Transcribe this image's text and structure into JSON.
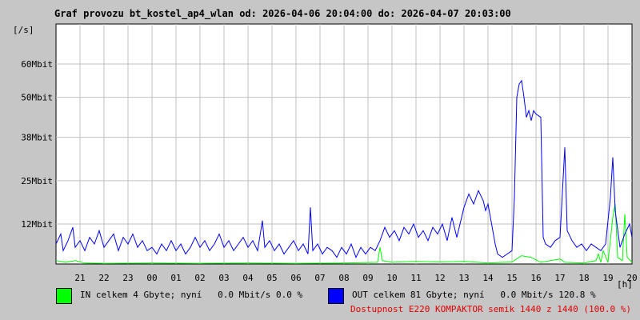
{
  "title": "Graf provozu bt_kostel_ap4_wlan od: 2026-04-06 20:04:00 do: 2026-04-07 20:03:00",
  "unit_label": "[/s]",
  "legend": {
    "in_text": "IN celkem 4 Gbyte; nyní   0.0 Mbit/s 0.0 %",
    "in_color": "#00ff00",
    "out_text": "OUT celkem 81 Gbyte; nyní   0.0 Mbit/s 120.8 %",
    "out_color": "#0000ff"
  },
  "availability": "Dostupnost E220 KOMPAKTOR semik 1440 z 1440 (100.0 %)",
  "chart_data": {
    "type": "line",
    "title": "Graf provozu bt_kostel_ap4_wlan od: 2026-04-06 20:04:00 do: 2026-04-07 20:03:00",
    "xlabel": "[h]",
    "ylabel": "[/s]",
    "xlim": [
      20,
      44
    ],
    "ylim": [
      0,
      72
    ],
    "y_ticks": [
      {
        "value": 12,
        "label": "12Mbit"
      },
      {
        "value": 25,
        "label": "25Mbit"
      },
      {
        "value": 38,
        "label": "38Mbit"
      },
      {
        "value": 50,
        "label": "50Mbit"
      },
      {
        "value": 60,
        "label": "60Mbit"
      }
    ],
    "x_tick_labels": [
      "21",
      "22",
      "23",
      "00",
      "01",
      "02",
      "03",
      "04",
      "05",
      "06",
      "07",
      "08",
      "09",
      "10",
      "11",
      "12",
      "13",
      "14",
      "15",
      "16",
      "17",
      "18",
      "19",
      "20"
    ],
    "grid": true,
    "series": [
      {
        "name": "OUT",
        "color": "#0000ff",
        "points": [
          [
            20.0,
            6
          ],
          [
            20.2,
            9
          ],
          [
            20.3,
            4
          ],
          [
            20.5,
            7
          ],
          [
            20.7,
            11
          ],
          [
            20.8,
            5
          ],
          [
            21.0,
            7
          ],
          [
            21.2,
            4
          ],
          [
            21.4,
            8
          ],
          [
            21.6,
            6
          ],
          [
            21.8,
            10
          ],
          [
            22.0,
            5
          ],
          [
            22.2,
            7
          ],
          [
            22.4,
            9
          ],
          [
            22.6,
            4
          ],
          [
            22.8,
            8
          ],
          [
            23.0,
            6
          ],
          [
            23.2,
            9
          ],
          [
            23.4,
            5
          ],
          [
            23.6,
            7
          ],
          [
            23.8,
            4
          ],
          [
            24.0,
            5
          ],
          [
            24.2,
            3
          ],
          [
            24.4,
            6
          ],
          [
            24.6,
            4
          ],
          [
            24.8,
            7
          ],
          [
            25.0,
            4
          ],
          [
            25.2,
            6
          ],
          [
            25.4,
            3
          ],
          [
            25.6,
            5
          ],
          [
            25.8,
            8
          ],
          [
            26.0,
            5
          ],
          [
            26.2,
            7
          ],
          [
            26.4,
            4
          ],
          [
            26.6,
            6
          ],
          [
            26.8,
            9
          ],
          [
            27.0,
            5
          ],
          [
            27.2,
            7
          ],
          [
            27.4,
            4
          ],
          [
            27.6,
            6
          ],
          [
            27.8,
            8
          ],
          [
            28.0,
            5
          ],
          [
            28.2,
            7
          ],
          [
            28.4,
            4
          ],
          [
            28.6,
            13
          ],
          [
            28.7,
            5
          ],
          [
            28.9,
            7
          ],
          [
            29.1,
            4
          ],
          [
            29.3,
            6
          ],
          [
            29.5,
            3
          ],
          [
            29.7,
            5
          ],
          [
            29.9,
            7
          ],
          [
            30.1,
            4
          ],
          [
            30.3,
            6
          ],
          [
            30.5,
            3
          ],
          [
            30.6,
            17
          ],
          [
            30.7,
            4
          ],
          [
            30.9,
            6
          ],
          [
            31.1,
            3
          ],
          [
            31.3,
            5
          ],
          [
            31.5,
            4
          ],
          [
            31.7,
            2
          ],
          [
            31.9,
            5
          ],
          [
            32.1,
            3
          ],
          [
            32.3,
            6
          ],
          [
            32.5,
            2
          ],
          [
            32.7,
            5
          ],
          [
            32.9,
            3
          ],
          [
            33.1,
            5
          ],
          [
            33.3,
            4
          ],
          [
            33.5,
            7
          ],
          [
            33.7,
            11
          ],
          [
            33.9,
            8
          ],
          [
            34.1,
            10
          ],
          [
            34.3,
            7
          ],
          [
            34.5,
            11
          ],
          [
            34.7,
            9
          ],
          [
            34.9,
            12
          ],
          [
            35.1,
            8
          ],
          [
            35.3,
            10
          ],
          [
            35.5,
            7
          ],
          [
            35.7,
            11
          ],
          [
            35.9,
            9
          ],
          [
            36.1,
            12
          ],
          [
            36.3,
            7
          ],
          [
            36.5,
            14
          ],
          [
            36.7,
            8
          ],
          [
            36.8,
            11
          ],
          [
            37.0,
            17
          ],
          [
            37.2,
            21
          ],
          [
            37.4,
            18
          ],
          [
            37.6,
            22
          ],
          [
            37.8,
            19
          ],
          [
            37.9,
            16
          ],
          [
            38.0,
            18
          ],
          [
            38.1,
            14
          ],
          [
            38.2,
            10
          ],
          [
            38.3,
            6
          ],
          [
            38.4,
            3
          ],
          [
            38.6,
            2
          ],
          [
            38.8,
            3
          ],
          [
            39.0,
            4
          ],
          [
            39.1,
            20
          ],
          [
            39.2,
            50
          ],
          [
            39.3,
            54
          ],
          [
            39.4,
            55
          ],
          [
            39.5,
            50
          ],
          [
            39.6,
            44
          ],
          [
            39.7,
            46
          ],
          [
            39.8,
            43
          ],
          [
            39.9,
            46
          ],
          [
            40.0,
            45
          ],
          [
            40.2,
            44
          ],
          [
            40.3,
            8
          ],
          [
            40.4,
            6
          ],
          [
            40.6,
            5
          ],
          [
            40.8,
            7
          ],
          [
            41.0,
            8
          ],
          [
            41.2,
            35
          ],
          [
            41.3,
            10
          ],
          [
            41.5,
            7
          ],
          [
            41.7,
            5
          ],
          [
            41.9,
            6
          ],
          [
            42.1,
            4
          ],
          [
            42.3,
            6
          ],
          [
            42.5,
            5
          ],
          [
            42.7,
            4
          ],
          [
            42.9,
            6
          ],
          [
            43.1,
            20
          ],
          [
            43.2,
            32
          ],
          [
            43.3,
            16
          ],
          [
            43.5,
            5
          ],
          [
            43.7,
            9
          ],
          [
            43.9,
            12
          ],
          [
            44.0,
            8
          ]
        ]
      },
      {
        "name": "IN",
        "color": "#00ff00",
        "points": [
          [
            20.0,
            1
          ],
          [
            20.4,
            0.5
          ],
          [
            20.8,
            1
          ],
          [
            21.2,
            0.3
          ],
          [
            22.0,
            0.2
          ],
          [
            24.0,
            0.3
          ],
          [
            26.0,
            0.2
          ],
          [
            28.0,
            0.3
          ],
          [
            30.0,
            0.2
          ],
          [
            32.0,
            0.3
          ],
          [
            33.4,
            0.5
          ],
          [
            33.5,
            5
          ],
          [
            33.6,
            1
          ],
          [
            34.0,
            0.5
          ],
          [
            35.0,
            0.8
          ],
          [
            36.0,
            0.6
          ],
          [
            37.0,
            0.8
          ],
          [
            38.0,
            0.3
          ],
          [
            39.0,
            0.6
          ],
          [
            39.4,
            2.5
          ],
          [
            39.8,
            2
          ],
          [
            40.2,
            0.5
          ],
          [
            41.0,
            1.5
          ],
          [
            41.2,
            0.5
          ],
          [
            42.0,
            0.3
          ],
          [
            42.5,
            1
          ],
          [
            42.6,
            3
          ],
          [
            42.7,
            0.5
          ],
          [
            42.8,
            4
          ],
          [
            43.0,
            0.5
          ],
          [
            43.2,
            14
          ],
          [
            43.3,
            18
          ],
          [
            43.4,
            2
          ],
          [
            43.6,
            1
          ],
          [
            43.7,
            15
          ],
          [
            43.8,
            2
          ],
          [
            44.0,
            0.5
          ]
        ]
      }
    ]
  }
}
